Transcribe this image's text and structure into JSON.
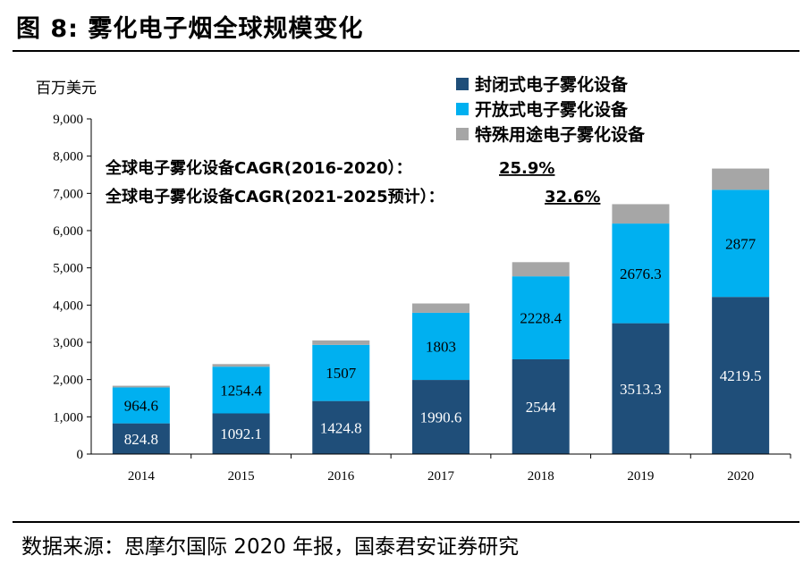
{
  "header": {
    "title": "图 8:  雾化电子烟全球规模变化"
  },
  "footer": {
    "source": "数据来源：思摩尔国际 2020 年报，国泰君安证券研究"
  },
  "chart_data": {
    "type": "bar",
    "stacked": true,
    "title": "雾化电子烟全球规模变化",
    "ylabel": "百万美元",
    "xlabel": "",
    "ylim": [
      0,
      9000
    ],
    "yticks": [
      0,
      1000,
      2000,
      3000,
      4000,
      5000,
      6000,
      7000,
      8000,
      9000
    ],
    "ytick_labels": [
      "0",
      "1,000",
      "2,000",
      "3,000",
      "4,000",
      "5,000",
      "6,000",
      "7,000",
      "8,000",
      "9,000"
    ],
    "categories": [
      "2014",
      "2015",
      "2016",
      "2017",
      "2018",
      "2019",
      "2020"
    ],
    "series": [
      {
        "name": "封闭式电子雾化设备",
        "color": "#1f4e79",
        "values": [
          824.8,
          1092.1,
          1424.8,
          1990.6,
          2544,
          3513.3,
          4219.5
        ],
        "labels": [
          "824.8",
          "1092.1",
          "1424.8",
          "1990.6",
          "2544",
          "3513.3",
          "4219.5"
        ]
      },
      {
        "name": "开放式电子雾化设备",
        "color": "#00b0f0",
        "values": [
          964.6,
          1254.4,
          1507,
          1803,
          2228.4,
          2676.3,
          2877
        ],
        "labels": [
          "964.6",
          "1254.4",
          "1507",
          "1803",
          "2228.4",
          "2676.3",
          "2877"
        ]
      },
      {
        "name": "特殊用途电子雾化设备",
        "color": "#a6a6a6",
        "values": [
          45,
          70,
          120,
          250,
          380,
          520,
          570
        ],
        "labels": []
      }
    ],
    "legend_position": "top-right",
    "annotations": [
      {
        "text": "全球电子雾化设备CAGR(2016-2020）：",
        "value": "25.9%"
      },
      {
        "text": "全球电子雾化设备CAGR(2021-2025预计）：",
        "value": "32.6%"
      }
    ]
  }
}
